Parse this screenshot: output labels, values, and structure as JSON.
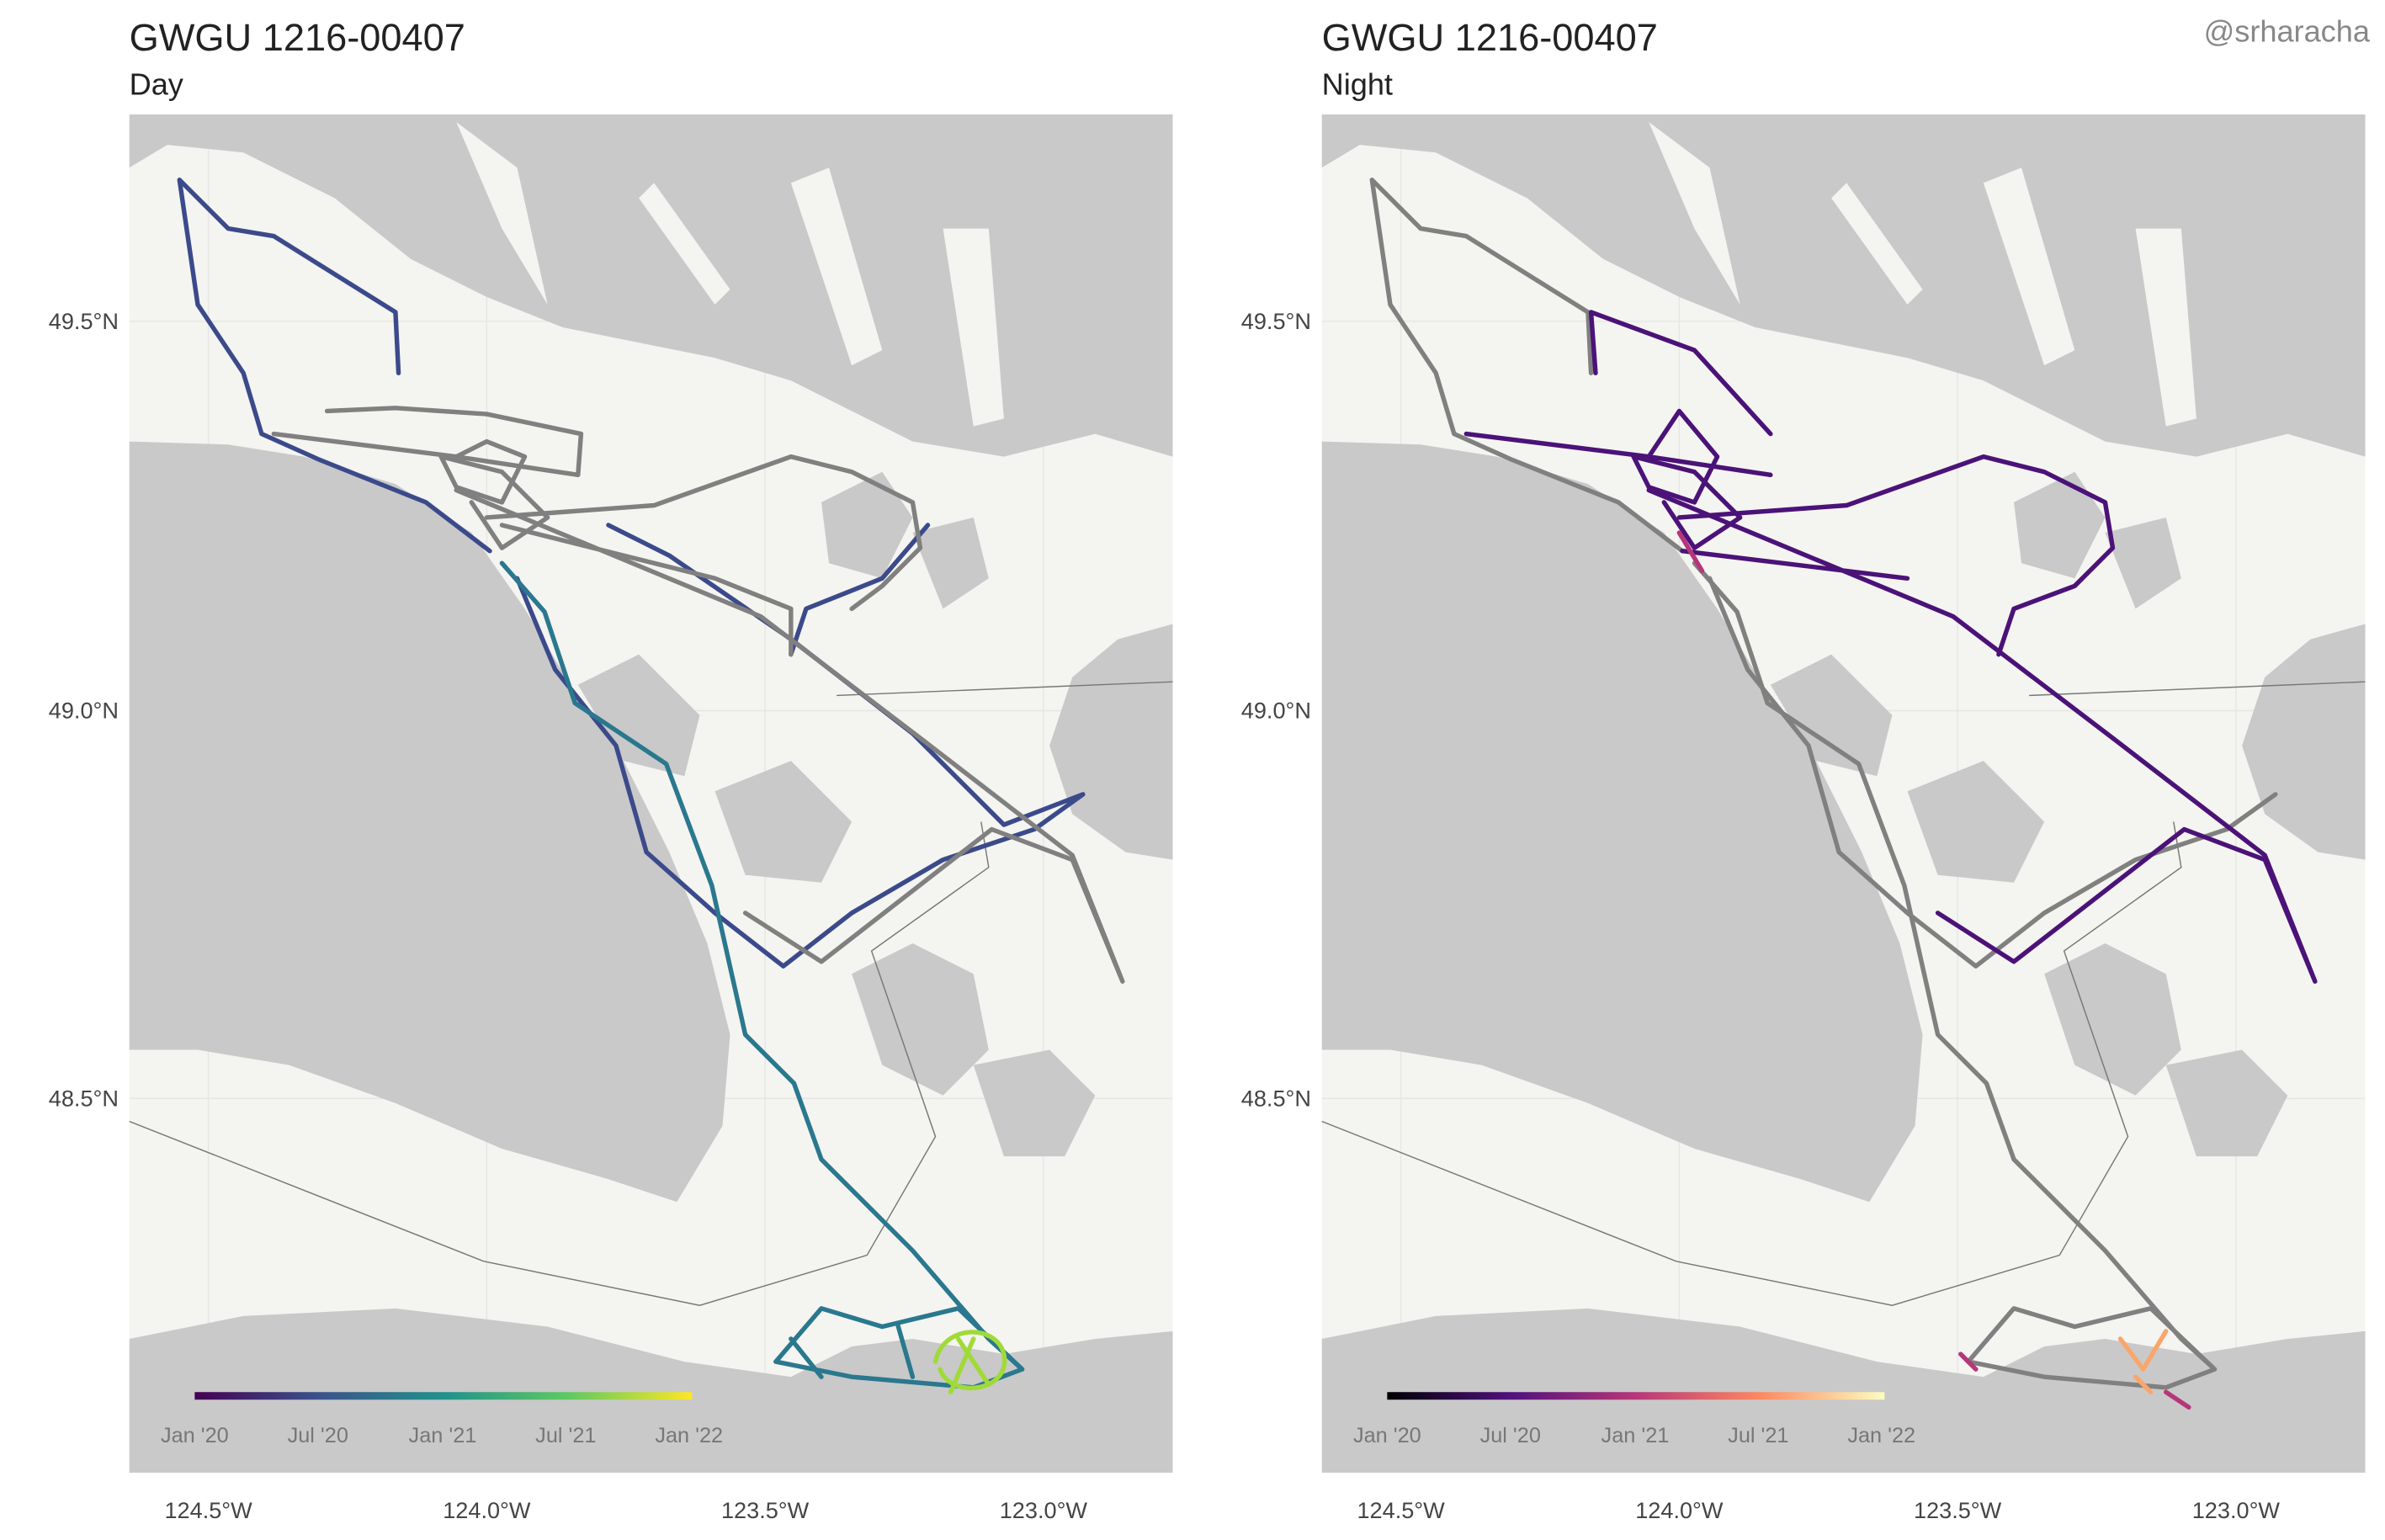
{
  "watermark": "@srharacha",
  "panels": [
    {
      "title": "GWGU 1216-00407",
      "subtitle": "Day",
      "y_ticks": [
        "49.5°N",
        "49.0°N",
        "48.5°N"
      ],
      "x_ticks": [
        "124.5°W",
        "124.0°W",
        "123.5°W",
        "123.0°W"
      ],
      "legend_labels": [
        "Jan '20",
        "Jul '20",
        "Jan '21",
        "Jul '21",
        "Jan '22"
      ]
    },
    {
      "title": "GWGU 1216-00407",
      "subtitle": "Night",
      "y_ticks": [
        "49.5°N",
        "49.0°N",
        "48.5°N"
      ],
      "x_ticks": [
        "124.5°W",
        "124.0°W",
        "123.5°W",
        "123.0°W"
      ],
      "legend_labels": [
        "Jan '20",
        "Jul '20",
        "Jan '21",
        "Jul '21",
        "Jan '22"
      ]
    }
  ]
}
